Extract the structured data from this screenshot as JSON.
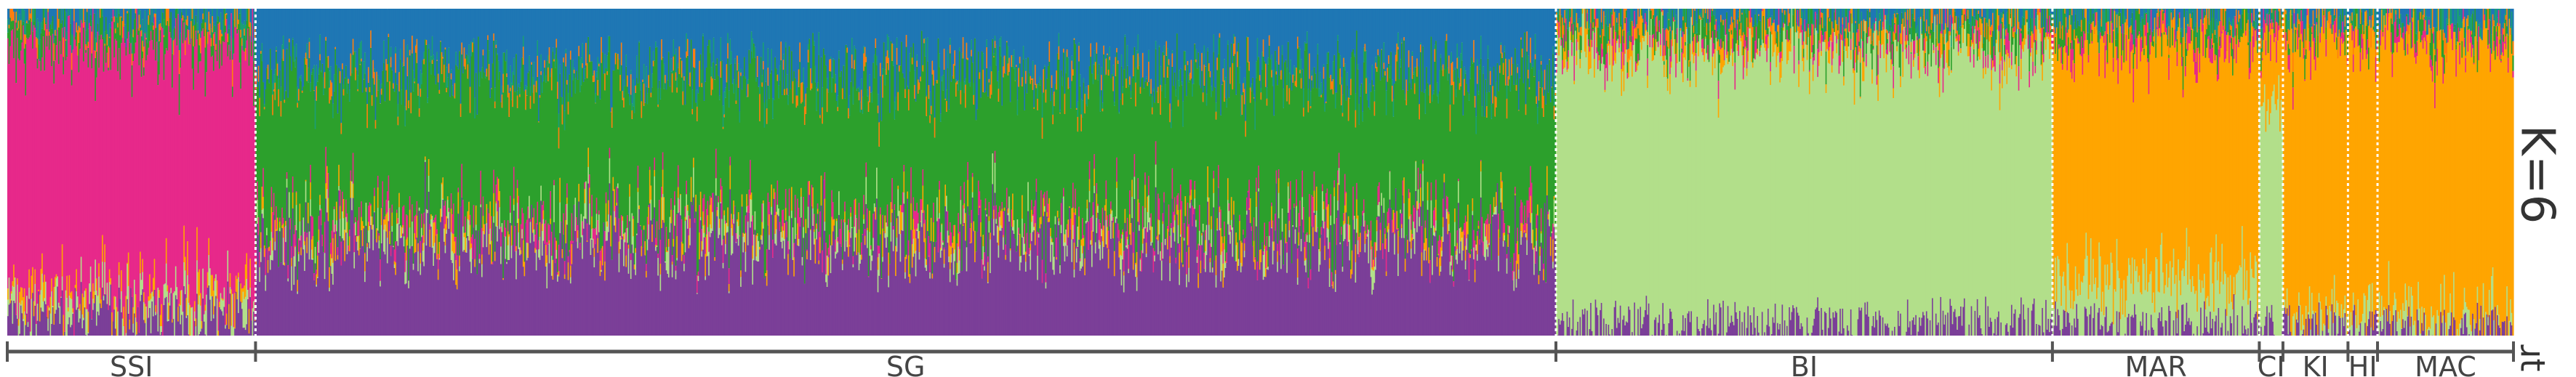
{
  "chart_data": {
    "type": "stacked-bar",
    "k_label": "K=6",
    "clipped_label": "ɹt",
    "ylim": [
      0,
      1
    ],
    "cluster_colors": [
      "#1f77b4",
      "#2ca02c",
      "#7b3f98",
      "#e7298a",
      "#b2df8a",
      "#ffa500",
      "#ff7f0e",
      "#1b9e77"
    ],
    "populations": [
      {
        "label": "SSI",
        "n_individuals": 210,
        "mean_ancestry": [
          0.02,
          0.06,
          0.06,
          0.8,
          0.04,
          0.02,
          0.0,
          0.0
        ]
      },
      {
        "label": "SG",
        "n_individuals": 1100,
        "mean_ancestry": [
          0.2,
          0.45,
          0.3,
          0.02,
          0.02,
          0.01,
          0.0,
          0.0
        ]
      },
      {
        "label": "BI",
        "n_individuals": 420,
        "mean_ancestry": [
          0.01,
          0.03,
          0.03,
          0.01,
          0.9,
          0.02,
          0.0,
          0.0
        ]
      },
      {
        "label": "MAR",
        "n_individuals": 175,
        "mean_ancestry": [
          0.01,
          0.03,
          0.03,
          0.02,
          0.15,
          0.76,
          0.0,
          0.0
        ]
      },
      {
        "label": "CI",
        "n_individuals": 20,
        "mean_ancestry": [
          0.01,
          0.02,
          0.02,
          0.01,
          0.7,
          0.24,
          0.0,
          0.0
        ]
      },
      {
        "label": "KI",
        "n_individuals": 55,
        "mean_ancestry": [
          0.01,
          0.01,
          0.02,
          0.01,
          0.03,
          0.92,
          0.0,
          0.0
        ]
      },
      {
        "label": "HI",
        "n_individuals": 25,
        "mean_ancestry": [
          0.01,
          0.01,
          0.02,
          0.01,
          0.03,
          0.92,
          0.0,
          0.0
        ]
      },
      {
        "label": "MAC",
        "n_individuals": 115,
        "mean_ancestry": [
          0.01,
          0.02,
          0.02,
          0.01,
          0.04,
          0.9,
          0.0,
          0.0
        ]
      }
    ],
    "grid": false,
    "legend": "none"
  }
}
